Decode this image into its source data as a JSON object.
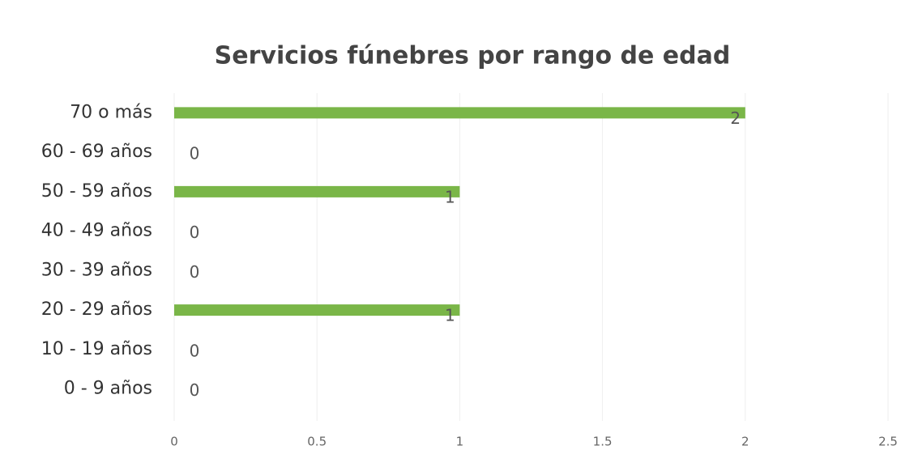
{
  "chart_data": {
    "type": "bar",
    "orientation": "horizontal",
    "title": "Servicios fúnebres por rango de edad",
    "categories": [
      "70 o más",
      "60 - 69 años",
      "50 - 59 años",
      "40 - 49 años",
      "30 - 39 años",
      "20 - 29 años",
      "10 - 19 años",
      "0 - 9 años"
    ],
    "values": [
      2,
      0,
      1,
      0,
      0,
      1,
      0,
      0
    ],
    "color": "#7ab648",
    "xlim": [
      0,
      2.5
    ],
    "xticks": [
      0,
      0.5,
      1,
      1.5,
      2,
      2.5
    ],
    "grid": true
  }
}
